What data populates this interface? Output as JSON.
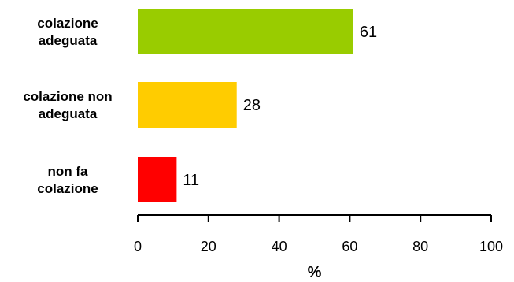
{
  "chart_data": {
    "type": "bar",
    "orientation": "horizontal",
    "categories": [
      [
        "colazione",
        "adeguata"
      ],
      [
        "colazione non",
        "adeguata"
      ],
      [
        "non fa",
        "colazione"
      ]
    ],
    "values": [
      61,
      28,
      11
    ],
    "value_labels": [
      "61",
      "28",
      "11"
    ],
    "colors": [
      "#99cc00",
      "#ffcc00",
      "#ff0000"
    ],
    "xlim": [
      0,
      100
    ],
    "xticks": [
      0,
      20,
      40,
      60,
      80,
      100
    ],
    "xtick_labels": [
      "0",
      "20",
      "40",
      "60",
      "80",
      "100"
    ],
    "xlabel": "%",
    "grid": false,
    "legend": "none"
  }
}
